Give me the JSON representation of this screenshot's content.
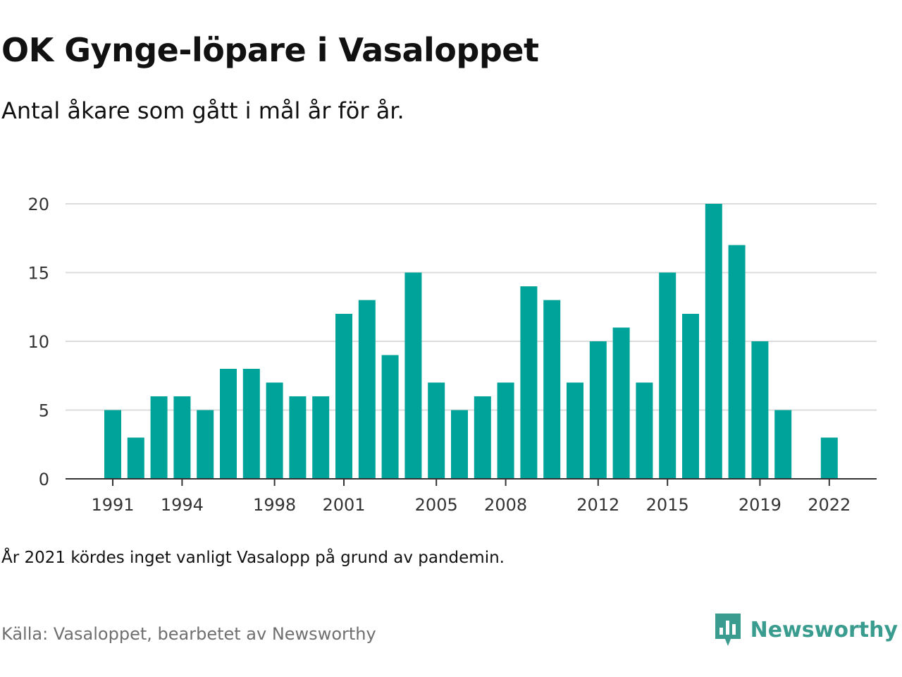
{
  "header": {
    "title": "OK Gynge-löpare i Vasaloppet",
    "subtitle": "Antal åkare som gått i mål år för år."
  },
  "footer": {
    "note": "År 2021 kördes inget vanligt Vasalopp på grund av pandemin.",
    "source": "Källa: Vasaloppet, bearbetet av Newsworthy",
    "brand": "Newsworthy",
    "brand_icon": "newsworthy-logo-icon"
  },
  "colors": {
    "bar": "#00a39a",
    "grid": "#dcdcdc",
    "axis": "#333333",
    "tick_text": "#333333",
    "brand": "#3a9c8f"
  },
  "chart_data": {
    "type": "bar",
    "x": [
      1991,
      1992,
      1993,
      1994,
      1995,
      1996,
      1997,
      1998,
      1999,
      2000,
      2001,
      2002,
      2003,
      2004,
      2005,
      2006,
      2007,
      2008,
      2009,
      2010,
      2011,
      2012,
      2013,
      2014,
      2015,
      2016,
      2017,
      2018,
      2019,
      2020,
      2021,
      2022
    ],
    "values": [
      5,
      3,
      6,
      6,
      5,
      8,
      8,
      7,
      6,
      6,
      12,
      13,
      9,
      15,
      7,
      5,
      6,
      7,
      14,
      13,
      7,
      10,
      11,
      7,
      15,
      12,
      20,
      17,
      10,
      5,
      null,
      3
    ],
    "x_tick_labels": [
      "1991",
      "1994",
      "1998",
      "2001",
      "2005",
      "2008",
      "2012",
      "2015",
      "2019",
      "2022"
    ],
    "y_tick_labels": [
      "0",
      "5",
      "10",
      "15",
      "20"
    ],
    "ylim": [
      0,
      20
    ],
    "grid": true,
    "title": "OK Gynge-löpare i Vasaloppet",
    "subtitle": "Antal åkare som gått i mål år för år."
  }
}
